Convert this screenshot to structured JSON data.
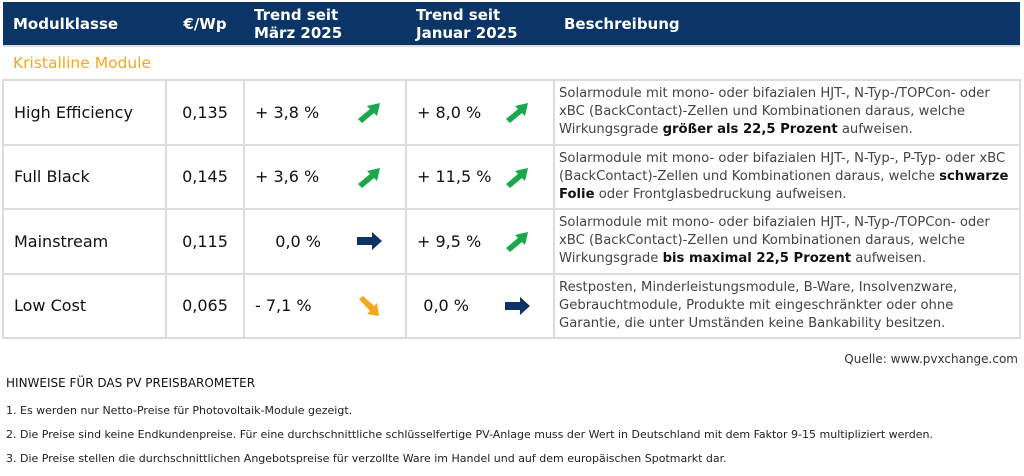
{
  "header": {
    "col_class": "Modulklasse",
    "col_price": "€/Wp",
    "col_trend1_l1": "Trend seit",
    "col_trend1_l2": "März 2025",
    "col_trend2_l1": "Trend seit",
    "col_trend2_l2": "Januar 2025",
    "col_desc": "Beschreibung"
  },
  "category": "Kristalline Module",
  "rows": [
    {
      "name": "High Efficiency",
      "price": "0,135",
      "trend_mar": "+ 3,8 %",
      "trend_mar_icon": "arrow-up-right-icon",
      "trend_jan": "+ 8,0 %",
      "trend_jan_icon": "arrow-up-right-icon",
      "desc_a": "Solarmodule mit mono- oder bifazialen HJT-, N-Typ-/TOPCon- oder xBC (BackContact)-Zellen und Kombinationen daraus, welche Wirkungsgrade ",
      "desc_b": "größer als 22,5 Prozent",
      "desc_c": " aufweisen."
    },
    {
      "name": "Full Black",
      "price": "0,145",
      "trend_mar": "+ 3,6 %",
      "trend_mar_icon": "arrow-up-right-icon",
      "trend_jan": "+ 11,5 %",
      "trend_jan_icon": "arrow-up-right-icon",
      "desc_a": "Solarmodule mit mono- oder bifazialen HJT-, N-Typ-, P-Typ- oder xBC (BackContact)-Zellen und Kombinationen daraus, welche ",
      "desc_b": "schwarze Folie",
      "desc_c": " oder Frontglasbedruckung aufweisen."
    },
    {
      "name": "Mainstream",
      "price": "0,115",
      "trend_mar": "0,0 %",
      "trend_mar_icon": "arrow-right-icon",
      "trend_jan": "+ 9,5 %",
      "trend_jan_icon": "arrow-up-right-icon",
      "desc_a": "Solarmodule mit mono- oder bifazialen HJT-, N-Typ-/TOPCon- oder xBC (BackContact)-Zellen und Kombinationen daraus, welche Wirkungsgrade ",
      "desc_b": "bis maximal 22,5 Prozent",
      "desc_c": " aufweisen."
    },
    {
      "name": "Low Cost",
      "price": "0,065",
      "trend_mar": "-  7,1 %",
      "trend_mar_icon": "arrow-down-right-icon",
      "trend_jan": "0,0 %",
      "trend_jan_icon": "arrow-right-icon",
      "desc_a": "Restposten, Minderleistungsmodule, B-Ware, Insolvenzware, Gebrauchtmodule, Produkte mit eingeschränkter oder ohne Garantie, die unter Umständen keine Bankability besitzen.",
      "desc_b": "",
      "desc_c": ""
    }
  ],
  "source": "Quelle: www.pvxchange.com",
  "notes": {
    "title": "HINWEISE FÜR DAS PV PREISBAROMETER",
    "items": [
      "1.  Es werden nur Netto-Preise für Photovoltaik-Module gezeigt.",
      "2. Die Preise sind keine Endkundenpreise. Für eine durchschnittliche schlüsselfertige PV-Anlage muss der Wert in Deutschland mit dem Faktor 9-15 multipliziert werden.",
      "3. Die Preise stellen die durchschnittlichen Angebotspreise für verzollte Ware im Handel und auf dem europäischen Spotmarkt dar."
    ]
  },
  "colors": {
    "header": "#0a3566",
    "category": "#f5a81c",
    "up": "#1aa84b",
    "flat": "#0a3566",
    "down": "#f5a81c"
  }
}
